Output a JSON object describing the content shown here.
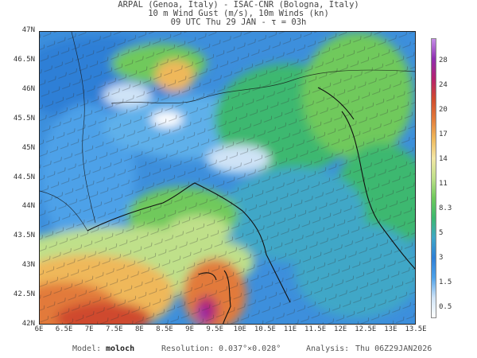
{
  "title": {
    "line1": "ARPAL (Genoa, Italy)  -  ISAC-CNR (Bologna, Italy)",
    "line2": "10 m Wind Gust (m/s), 10m Winds (kn)",
    "line3": "09 UTC Thu 29 JAN  -  τ = 03h"
  },
  "axes": {
    "lat_labels": [
      "47N",
      "46.5N",
      "46N",
      "45.5N",
      "45N",
      "44.5N",
      "44N",
      "43.5N",
      "43N",
      "42.5N",
      "42N"
    ],
    "lat_range": [
      42,
      47
    ],
    "lon_labels": [
      "6E",
      "6.5E",
      "7E",
      "7.5E",
      "8E",
      "8.5E",
      "9E",
      "9.5E",
      "10E",
      "10.5E",
      "11E",
      "11.5E",
      "12E",
      "12.5E",
      "13E",
      "13.5E"
    ],
    "lon_range": [
      6,
      13.5
    ]
  },
  "colorbar": {
    "labels": [
      "28",
      "24",
      "20",
      "17",
      "14",
      "11",
      "8.3",
      "5",
      "3",
      "1.5",
      "0.5"
    ],
    "values": [
      28,
      24,
      20,
      17,
      14,
      11,
      8.3,
      5,
      3,
      1.5,
      0.5
    ],
    "colors": [
      "#ffffff",
      "#cfe3f6",
      "#4da1e8",
      "#2f7fd6",
      "#3fa7c7",
      "#3db86f",
      "#6fc95c",
      "#bfe08a",
      "#f3e7a6",
      "#efb85a",
      "#e27a3a",
      "#cf4a2e",
      "#b5226e",
      "#8e2fb0",
      "#c48ee6"
    ]
  },
  "footer": {
    "model_label": "Model:",
    "model": "moloch",
    "resolution_label": "Resolution:",
    "resolution": "0.037°×0.028°",
    "analysis_label": "Analysis:",
    "analysis": "Thu 06Z29JAN2026"
  }
}
